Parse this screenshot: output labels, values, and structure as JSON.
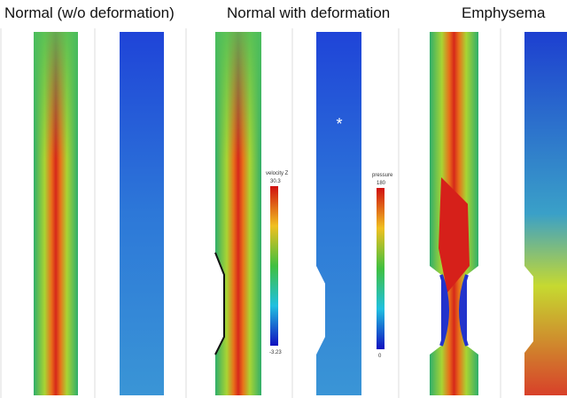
{
  "panels": {
    "titles": [
      "Normal (w/o deformation)",
      "Normal with deformation",
      "Emphysema"
    ]
  },
  "velocity_colorbar": {
    "label": "velocity Z",
    "max": "30.3",
    "min": "-3.23"
  },
  "pressure_colorbar": {
    "label": "pressure",
    "max": "180",
    "min": "0"
  },
  "annotation": "*"
}
